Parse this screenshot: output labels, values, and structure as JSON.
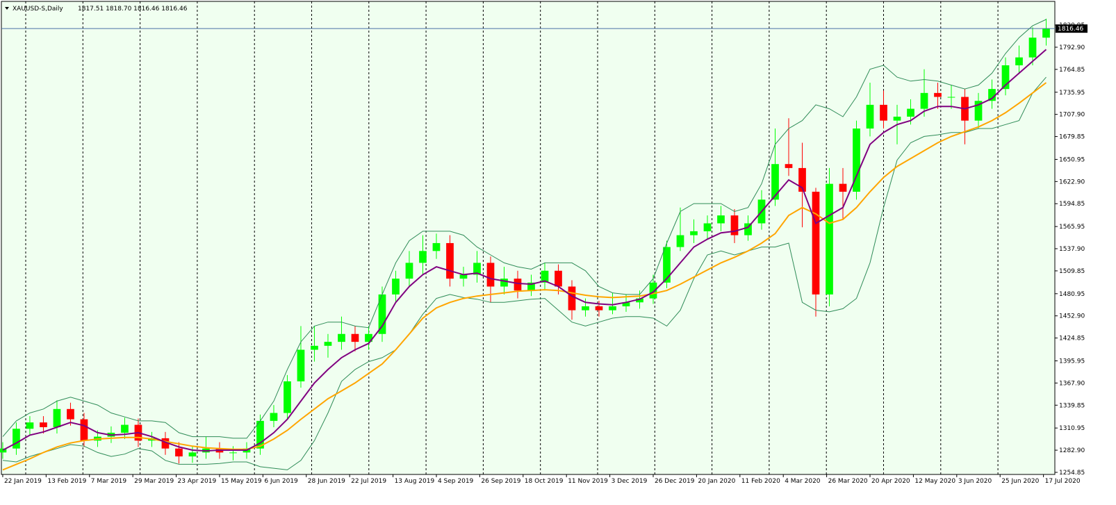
{
  "chart_data": {
    "type": "candlestick",
    "title": "XAUUSD-S,Daily",
    "quote": "1817.51 1818.70 1816.46 1816.46",
    "current_price": 1816.46,
    "xlim": [
      -0.5,
      388.2
    ],
    "ylim": [
      1252.2,
      1850.9
    ],
    "xticks": [
      {
        "value": 0,
        "label": "22 Jan 2019"
      },
      {
        "value": 16,
        "label": "13 Feb 2019"
      },
      {
        "value": 32,
        "label": "7 Mar 2019"
      },
      {
        "value": 48,
        "label": "29 Mar 2019"
      },
      {
        "value": 64,
        "label": "23 Apr 2019"
      },
      {
        "value": 80,
        "label": "15 May 2019"
      },
      {
        "value": 96,
        "label": "6 Jun 2019"
      },
      {
        "value": 112,
        "label": "28 Jun 2019"
      },
      {
        "value": 128,
        "label": "22 Jul 2019"
      },
      {
        "value": 144,
        "label": "13 Aug 2019"
      },
      {
        "value": 160,
        "label": "4 Sep 2019"
      },
      {
        "value": 176,
        "label": "26 Sep 2019"
      },
      {
        "value": 192,
        "label": "18 Oct 2019"
      },
      {
        "value": 208,
        "label": "11 Nov 2019"
      },
      {
        "value": 224,
        "label": "3 Dec 2019"
      },
      {
        "value": 240,
        "label": "26 Dec 2019"
      },
      {
        "value": 256,
        "label": "20 Jan 2020"
      },
      {
        "value": 272,
        "label": "11 Feb 2020"
      },
      {
        "value": 288,
        "label": "4 Mar 2020"
      },
      {
        "value": 304,
        "label": "26 Mar 2020"
      },
      {
        "value": 320,
        "label": "20 Apr 2020"
      },
      {
        "value": 336,
        "label": "12 May 2020"
      },
      {
        "value": 352,
        "label": "3 Jun 2020"
      },
      {
        "value": 368,
        "label": "25 Jun 2020"
      },
      {
        "value": 384,
        "label": "17 Jul 2020"
      }
    ],
    "yticks": [
      1254.85,
      {
        "value": 1282.9,
        "label": "1282.90"
      },
      1310.95,
      1339.85,
      {
        "value": 1367.9,
        "label": "1367.90"
      },
      1395.95,
      1424.85,
      {
        "value": 1452.9,
        "label": "1452.90"
      },
      1480.95,
      1509.85,
      {
        "value": 1537.9,
        "label": "1537.90"
      },
      1565.95,
      1594.85,
      {
        "value": 1622.9,
        "label": "1622.90"
      },
      1650.95,
      1679.85,
      {
        "value": 1707.9,
        "label": "1707.90"
      },
      1735.95,
      1764.85,
      {
        "value": 1792.9,
        "label": "1792.90"
      },
      1820.95
    ],
    "up_color": "#00ff00",
    "down_color": "#ff0000",
    "candles": {
      "x": [
        0,
        5,
        10,
        15,
        20,
        25,
        30,
        35,
        40,
        45,
        50,
        55,
        60,
        65,
        70,
        75,
        80,
        85,
        90,
        95,
        100,
        105,
        110,
        115,
        120,
        125,
        130,
        135,
        140,
        145,
        150,
        155,
        160,
        165,
        170,
        175,
        180,
        185,
        190,
        195,
        200,
        205,
        210,
        215,
        220,
        225,
        230,
        235,
        240,
        245,
        250,
        255,
        260,
        265,
        270,
        275,
        280,
        285,
        290,
        295,
        300,
        305,
        310,
        315,
        320,
        325,
        330,
        335,
        340,
        345,
        350,
        355,
        360,
        365,
        370,
        375,
        380,
        385
      ],
      "open": [
        1280,
        1285,
        1310,
        1318,
        1312,
        1335,
        1322,
        1295,
        1300,
        1305,
        1315,
        1295,
        1298,
        1285,
        1275,
        1280,
        1285,
        1280,
        1280,
        1285,
        1320,
        1330,
        1370,
        1410,
        1415,
        1420,
        1430,
        1420,
        1430,
        1480,
        1500,
        1520,
        1535,
        1545,
        1500,
        1505,
        1520,
        1490,
        1500,
        1485,
        1495,
        1510,
        1490,
        1460,
        1465,
        1460,
        1465,
        1470,
        1475,
        1495,
        1540,
        1555,
        1560,
        1570,
        1580,
        1555,
        1570,
        1600,
        1645,
        1640,
        1610,
        1480,
        1620,
        1610,
        1690,
        1720,
        1700,
        1705,
        1715,
        1735,
        1730,
        1730,
        1700,
        1725,
        1740,
        1770,
        1780,
        1805
      ],
      "high": [
        1293,
        1318,
        1326,
        1326,
        1346,
        1343,
        1330,
        1308,
        1313,
        1324,
        1323,
        1306,
        1306,
        1293,
        1288,
        1300,
        1293,
        1288,
        1293,
        1328,
        1340,
        1378,
        1440,
        1440,
        1430,
        1452,
        1440,
        1440,
        1490,
        1510,
        1535,
        1555,
        1557,
        1555,
        1515,
        1535,
        1528,
        1515,
        1510,
        1505,
        1520,
        1518,
        1498,
        1475,
        1472,
        1482,
        1480,
        1485,
        1505,
        1548,
        1590,
        1575,
        1580,
        1592,
        1588,
        1580,
        1612,
        1690,
        1703,
        1672,
        1615,
        1640,
        1640,
        1700,
        1748,
        1738,
        1720,
        1727,
        1765,
        1748,
        1745,
        1740,
        1735,
        1752,
        1780,
        1795,
        1818,
        1829
      ],
      "low": [
        1272,
        1277,
        1302,
        1304,
        1304,
        1314,
        1287,
        1287,
        1292,
        1297,
        1287,
        1287,
        1277,
        1266,
        1267,
        1272,
        1272,
        1270,
        1272,
        1277,
        1312,
        1322,
        1362,
        1395,
        1400,
        1410,
        1408,
        1410,
        1420,
        1470,
        1490,
        1505,
        1525,
        1490,
        1490,
        1495,
        1470,
        1480,
        1475,
        1478,
        1485,
        1480,
        1448,
        1452,
        1452,
        1455,
        1458,
        1462,
        1468,
        1488,
        1535,
        1545,
        1550,
        1560,
        1545,
        1548,
        1562,
        1592,
        1630,
        1565,
        1452,
        1465,
        1575,
        1600,
        1680,
        1690,
        1670,
        1695,
        1705,
        1715,
        1715,
        1670,
        1690,
        1715,
        1732,
        1760,
        1770,
        1795
      ],
      "close": [
        1285,
        1310,
        1318,
        1312,
        1335,
        1322,
        1295,
        1300,
        1305,
        1315,
        1295,
        1298,
        1285,
        1275,
        1280,
        1285,
        1280,
        1280,
        1285,
        1320,
        1330,
        1370,
        1410,
        1415,
        1420,
        1430,
        1420,
        1430,
        1480,
        1500,
        1520,
        1535,
        1545,
        1500,
        1505,
        1520,
        1490,
        1500,
        1485,
        1495,
        1510,
        1490,
        1460,
        1465,
        1460,
        1465,
        1470,
        1475,
        1495,
        1540,
        1555,
        1560,
        1570,
        1580,
        1555,
        1570,
        1600,
        1645,
        1640,
        1610,
        1480,
        1620,
        1610,
        1690,
        1720,
        1700,
        1705,
        1715,
        1735,
        1730,
        1730,
        1700,
        1725,
        1740,
        1770,
        1780,
        1805,
        1816.46
      ]
    },
    "lines": [
      {
        "color": "#2e8b57",
        "values": [
          1300,
          1320,
          1330,
          1335,
          1345,
          1350,
          1345,
          1340,
          1330,
          1325,
          1320,
          1320,
          1318,
          1305,
          1300,
          1300,
          1300,
          1298,
          1298,
          1320,
          1345,
          1385,
          1420,
          1440,
          1445,
          1445,
          1440,
          1438,
          1480,
          1520,
          1548,
          1560,
          1560,
          1560,
          1555,
          1540,
          1530,
          1520,
          1515,
          1512,
          1520,
          1520,
          1520,
          1510,
          1490,
          1482,
          1480,
          1480,
          1500,
          1545,
          1585,
          1595,
          1595,
          1595,
          1585,
          1590,
          1620,
          1670,
          1690,
          1700,
          1720,
          1715,
          1705,
          1730,
          1765,
          1770,
          1755,
          1750,
          1752,
          1750,
          1745,
          1740,
          1745,
          1760,
          1785,
          1805,
          1820,
          1828
        ]
      },
      {
        "color": "#2e8b57",
        "values": [
          1270,
          1268,
          1275,
          1280,
          1285,
          1290,
          1288,
          1280,
          1275,
          1278,
          1285,
          1282,
          1270,
          1265,
          1265,
          1265,
          1266,
          1268,
          1268,
          1262,
          1260,
          1258,
          1270,
          1295,
          1330,
          1370,
          1385,
          1395,
          1400,
          1410,
          1430,
          1455,
          1475,
          1480,
          1476,
          1474,
          1470,
          1470,
          1472,
          1474,
          1475,
          1460,
          1445,
          1440,
          1445,
          1450,
          1452,
          1452,
          1450,
          1440,
          1460,
          1500,
          1530,
          1535,
          1530,
          1535,
          1540,
          1540,
          1545,
          1470,
          1460,
          1458,
          1462,
          1475,
          1520,
          1590,
          1650,
          1672,
          1680,
          1682,
          1685,
          1685,
          1690,
          1690,
          1695,
          1700,
          1735,
          1755
        ]
      },
      {
        "color": "#ffa500",
        "values": [
          1258,
          1265,
          1272,
          1280,
          1287,
          1292,
          1295,
          1297,
          1298,
          1299,
          1299,
          1297,
          1294,
          1291,
          1288,
          1286,
          1285,
          1284,
          1284,
          1288,
          1297,
          1308,
          1322,
          1335,
          1348,
          1358,
          1368,
          1380,
          1392,
          1410,
          1430,
          1450,
          1463,
          1470,
          1475,
          1478,
          1480,
          1482,
          1484,
          1485,
          1486,
          1485,
          1482,
          1479,
          1477,
          1476,
          1477,
          1478,
          1481,
          1485,
          1493,
          1502,
          1511,
          1520,
          1527,
          1535,
          1545,
          1557,
          1580,
          1590,
          1582,
          1570,
          1575,
          1590,
          1610,
          1628,
          1642,
          1652,
          1662,
          1672,
          1680,
          1686,
          1692,
          1700,
          1710,
          1722,
          1735,
          1748
        ]
      },
      {
        "color": "#800080",
        "values": [
          1283,
          1292,
          1302,
          1306,
          1312,
          1318,
          1314,
          1305,
          1302,
          1303,
          1305,
          1300,
          1293,
          1287,
          1283,
          1282,
          1283,
          1283,
          1283,
          1292,
          1305,
          1322,
          1345,
          1368,
          1385,
          1400,
          1410,
          1418,
          1440,
          1470,
          1490,
          1505,
          1515,
          1510,
          1505,
          1507,
          1500,
          1497,
          1494,
          1493,
          1497,
          1490,
          1478,
          1470,
          1468,
          1467,
          1470,
          1474,
          1483,
          1500,
          1520,
          1540,
          1550,
          1558,
          1560,
          1565,
          1585,
          1605,
          1625,
          1615,
          1570,
          1580,
          1590,
          1630,
          1670,
          1685,
          1695,
          1700,
          1712,
          1718,
          1718,
          1715,
          1720,
          1728,
          1745,
          1760,
          1775,
          1790
        ]
      }
    ],
    "price_line_color": "#4a6fa5"
  }
}
